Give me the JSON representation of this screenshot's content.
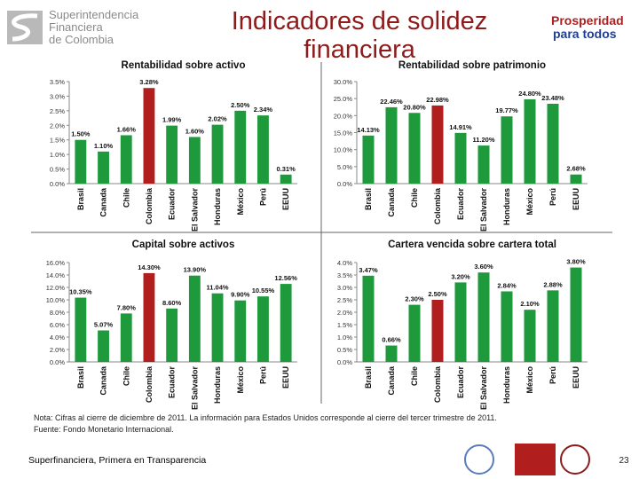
{
  "header": {
    "title": "Indicadores de solidez financiera",
    "logo_left": [
      "Superintendencia",
      "Financiera",
      "de Colombia"
    ],
    "logo_right": [
      "Prosperidad",
      "para todos"
    ]
  },
  "chart_data": [
    {
      "type": "bar",
      "title": "Rentabilidad sobre activo",
      "categories": [
        "Brasil",
        "Canada",
        "Chile",
        "Colombia",
        "Ecuador",
        "El Salvador",
        "Honduras",
        "México",
        "Perú",
        "EEUU"
      ],
      "values": [
        1.5,
        1.1,
        1.66,
        3.28,
        1.99,
        1.6,
        2.02,
        2.5,
        2.34,
        0.31
      ],
      "value_labels": [
        "1.50%",
        "1.10%",
        "1.66%",
        "3.28%",
        "1.99%",
        "1.60%",
        "2.02%",
        "2.50%",
        "2.34%",
        "0.31%"
      ],
      "colors": [
        "#1e9a3c",
        "#1e9a3c",
        "#1e9a3c",
        "#b01e1e",
        "#1e9a3c",
        "#1e9a3c",
        "#1e9a3c",
        "#1e9a3c",
        "#1e9a3c",
        "#1e9a3c"
      ],
      "ylim": [
        0,
        3.5
      ],
      "yticks": [
        {
          "value": 0,
          "label": "0.0%"
        },
        {
          "value": 0.5,
          "label": "0.5%"
        },
        {
          "value": 1,
          "label": "1.0%"
        },
        {
          "value": 1.5,
          "label": "1.5%"
        },
        {
          "value": 2,
          "label": "2.0%"
        },
        {
          "value": 2.5,
          "label": "2.5%"
        },
        {
          "value": 3,
          "label": "3.0%"
        },
        {
          "value": 3.5,
          "label": "3.5%"
        }
      ],
      "grid": false
    },
    {
      "type": "bar",
      "title": "Rentabilidad sobre patrimonio",
      "categories": [
        "Brasil",
        "Canada",
        "Chile",
        "Colombia",
        "Ecuador",
        "El Salvador",
        "Honduras",
        "México",
        "Perú",
        "EEUU"
      ],
      "values": [
        14.13,
        22.46,
        20.8,
        22.98,
        14.91,
        11.2,
        19.77,
        24.8,
        23.48,
        2.68
      ],
      "value_labels": [
        "14.13%",
        "22.46%",
        "20.80%",
        "22.98%",
        "14.91%",
        "11.20%",
        "19.77%",
        "24.80%",
        "23.48%",
        "2.68%"
      ],
      "colors": [
        "#1e9a3c",
        "#1e9a3c",
        "#1e9a3c",
        "#b01e1e",
        "#1e9a3c",
        "#1e9a3c",
        "#1e9a3c",
        "#1e9a3c",
        "#1e9a3c",
        "#1e9a3c"
      ],
      "ylim": [
        0,
        30
      ],
      "yticks": [
        {
          "value": 0,
          "label": "0.0%"
        },
        {
          "value": 5,
          "label": "5.0%"
        },
        {
          "value": 10,
          "label": "10.0%"
        },
        {
          "value": 15,
          "label": "15.0%"
        },
        {
          "value": 20,
          "label": "20.0%"
        },
        {
          "value": 25,
          "label": "25.0%"
        },
        {
          "value": 30,
          "label": "30.0%"
        }
      ],
      "grid": false
    },
    {
      "type": "bar",
      "title": "Capital sobre activos",
      "categories": [
        "Brasil",
        "Canada",
        "Chile",
        "Colombia",
        "Ecuador",
        "El Salvador",
        "Honduras",
        "México",
        "Perú",
        "EEUU"
      ],
      "values": [
        10.35,
        5.07,
        7.8,
        14.3,
        8.6,
        13.9,
        11.04,
        9.9,
        10.55,
        12.56
      ],
      "value_labels": [
        "10.35%",
        "5.07%",
        "7.80%",
        "14.30%",
        "8.60%",
        "13.90%",
        "11.04%",
        "9.90%",
        "10.55%",
        "12.56%"
      ],
      "colors": [
        "#1e9a3c",
        "#1e9a3c",
        "#1e9a3c",
        "#b01e1e",
        "#1e9a3c",
        "#1e9a3c",
        "#1e9a3c",
        "#1e9a3c",
        "#1e9a3c",
        "#1e9a3c"
      ],
      "ylim": [
        0,
        16
      ],
      "yticks": [
        {
          "value": 0,
          "label": "0.0%"
        },
        {
          "value": 2,
          "label": "2.0%"
        },
        {
          "value": 4,
          "label": "4.0%"
        },
        {
          "value": 6,
          "label": "6.0%"
        },
        {
          "value": 8,
          "label": "8.0%"
        },
        {
          "value": 10,
          "label": "10.0%"
        },
        {
          "value": 12,
          "label": "12.0%"
        },
        {
          "value": 14,
          "label": "14.0%"
        },
        {
          "value": 16,
          "label": "16.0%"
        }
      ],
      "grid": false
    },
    {
      "type": "bar",
      "title": "Cartera vencida sobre cartera total",
      "categories": [
        "Brasil",
        "Canada",
        "Chile",
        "Colombia",
        "Ecuador",
        "El Salvador",
        "Honduras",
        "México",
        "Perú",
        "EEUU"
      ],
      "values": [
        3.47,
        0.66,
        2.3,
        2.5,
        3.2,
        3.6,
        2.84,
        2.1,
        2.88,
        3.8
      ],
      "value_labels": [
        "3.47%",
        "0.66%",
        "2.30%",
        "2.50%",
        "3.20%",
        "3.60%",
        "2.84%",
        "2.10%",
        "2.88%",
        "3.80%"
      ],
      "colors": [
        "#1e9a3c",
        "#1e9a3c",
        "#1e9a3c",
        "#b01e1e",
        "#1e9a3c",
        "#1e9a3c",
        "#1e9a3c",
        "#1e9a3c",
        "#1e9a3c",
        "#1e9a3c"
      ],
      "ylim": [
        0,
        4
      ],
      "yticks": [
        {
          "value": 0,
          "label": "0.0%"
        },
        {
          "value": 0.5,
          "label": "0.5%"
        },
        {
          "value": 1,
          "label": "1.0%"
        },
        {
          "value": 1.5,
          "label": "1.5%"
        },
        {
          "value": 2,
          "label": "2.0%"
        },
        {
          "value": 2.5,
          "label": "2.5%"
        },
        {
          "value": 3,
          "label": "3.0%"
        },
        {
          "value": 3.5,
          "label": "3.5%"
        },
        {
          "value": 4,
          "label": "4.0%"
        }
      ],
      "grid": false
    }
  ],
  "note": [
    "Nota: Cifras al cierre de diciembre de 2011. La información para Estados Unidos corresponde al cierre del tercer trimestre de 2011.",
    "Fuente: Fondo Monetario Internacional."
  ],
  "footer": {
    "text": "Superfinanciera, Primera en Transparencia",
    "page": "23"
  }
}
